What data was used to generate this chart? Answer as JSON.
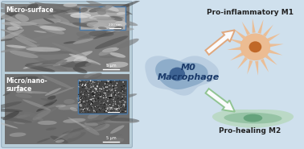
{
  "bg_color": "#cfe0ed",
  "left_panel_bg": "#b8cdd8",
  "sem_top_bg": "#7a7a7a",
  "sem_bot_bg": "#6e6e6e",
  "inset_border_color": "#4a7aaa",
  "inset_top_bg": "#aaaaaa",
  "inset_bot_bg": "#555555",
  "micro_surface_label": "Micro-surface",
  "micro_nano_label": "Micro/nano-\nsurface",
  "m0_label": "M0\nMacrophage",
  "m1_label": "Pro-inflammatory M1",
  "m2_label": "Pro-healing M2",
  "m0_outer_color": "#b8cce0",
  "m0_inner_color": "#8aaac8",
  "m0_nucleus_color": "#3a5f90",
  "m1_outer_color": "#f0b888",
  "m1_inner_color": "#e89858",
  "m1_nucleus_color": "#c06828",
  "m2_outer_color": "#b8d8c0",
  "m2_inner_color": "#90c0a0",
  "m2_nucleus_color": "#60a078",
  "arrow_up_color": "#e0a070",
  "arrow_down_color": "#88c088",
  "white": "#ffffff"
}
